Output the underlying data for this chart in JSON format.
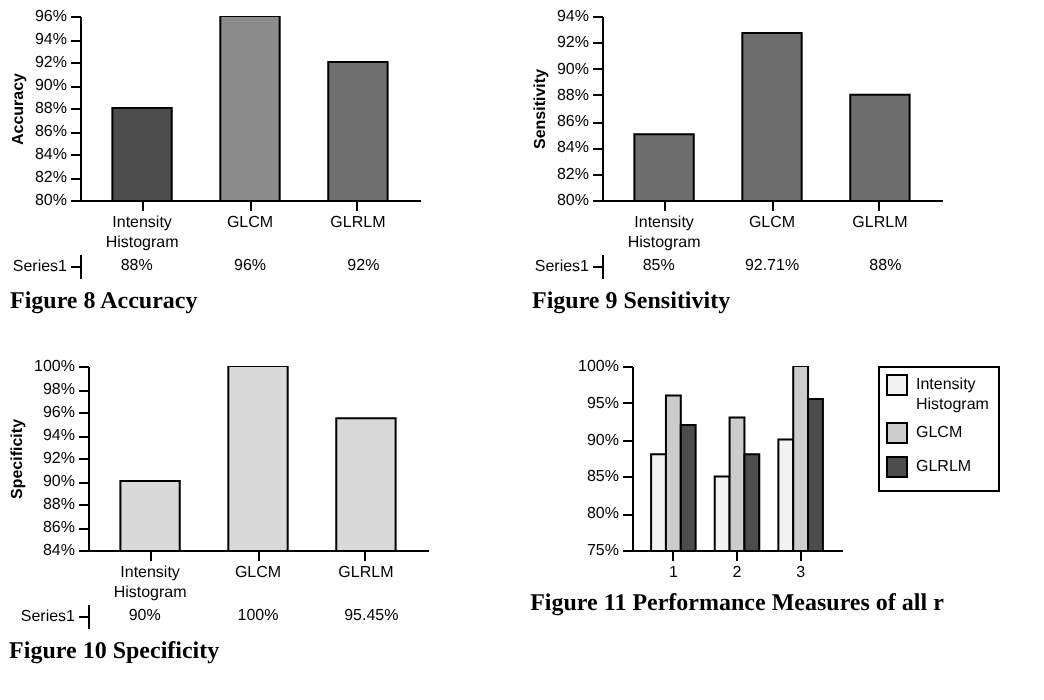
{
  "chart_data": [
    {
      "type": "bar",
      "title": "Figure 8 Accuracy",
      "ylabel": "Accuracy",
      "categories": [
        "Intensity Histogram",
        "GLCM",
        "GLRLM"
      ],
      "series": [
        {
          "name": "Series1",
          "colors": [
            "#4d4d4d",
            "#8c8c8c",
            "#707070"
          ],
          "values": [
            88,
            96,
            92
          ],
          "value_labels": [
            "88%",
            "96%",
            "92%"
          ]
        }
      ],
      "ylim": [
        80,
        96
      ],
      "yticks": [
        {
          "value": 80,
          "label": "80%"
        },
        {
          "value": 82,
          "label": "82%"
        },
        {
          "value": 84,
          "label": "84%"
        },
        {
          "value": 86,
          "label": "86%"
        },
        {
          "value": 88,
          "label": "88%"
        },
        {
          "value": 90,
          "label": "90%"
        },
        {
          "value": 92,
          "label": "92%"
        },
        {
          "value": 94,
          "label": "94%"
        },
        {
          "value": 96,
          "label": "96%"
        }
      ]
    },
    {
      "type": "bar",
      "title": "Figure 9 Sensitivity",
      "ylabel": "Sensitivity",
      "categories": [
        "Intensity Histogram",
        "GLCM",
        "GLRLM"
      ],
      "series": [
        {
          "name": "Series1",
          "color": "#6e6e6e",
          "values": [
            85,
            92.71,
            88
          ],
          "value_labels": [
            "85%",
            "92.71%",
            "88%"
          ]
        }
      ],
      "ylim": [
        80,
        94
      ],
      "yticks": [
        {
          "value": 80,
          "label": "80%"
        },
        {
          "value": 82,
          "label": "82%"
        },
        {
          "value": 84,
          "label": "84%"
        },
        {
          "value": 86,
          "label": "86%"
        },
        {
          "value": 88,
          "label": "88%"
        },
        {
          "value": 90,
          "label": "90%"
        },
        {
          "value": 92,
          "label": "92%"
        },
        {
          "value": 94,
          "label": "94%"
        }
      ]
    },
    {
      "type": "bar",
      "title": "Figure 10 Specificity",
      "ylabel": "Specificity",
      "categories": [
        "Intensity Histogram",
        "GLCM",
        "GLRLM"
      ],
      "series": [
        {
          "name": "Series1",
          "color": "#d9d9d9",
          "values": [
            90,
            100,
            95.45
          ],
          "value_labels": [
            "90%",
            "100%",
            "95.45%"
          ]
        }
      ],
      "ylim": [
        84,
        100
      ],
      "yticks": [
        {
          "value": 84,
          "label": "84%"
        },
        {
          "value": 86,
          "label": "86%"
        },
        {
          "value": 88,
          "label": "88%"
        },
        {
          "value": 90,
          "label": "90%"
        },
        {
          "value": 92,
          "label": "92%"
        },
        {
          "value": 94,
          "label": "94%"
        },
        {
          "value": 96,
          "label": "96%"
        },
        {
          "value": 98,
          "label": "98%"
        },
        {
          "value": 100,
          "label": "100%"
        }
      ]
    },
    {
      "type": "bar",
      "title": "Figure 11 Performance Measures of all r",
      "categories": [
        "1",
        "2",
        "3"
      ],
      "legend": "right",
      "series": [
        {
          "name": "Intensity Histogram",
          "color": "#f2f2f2",
          "values": [
            88,
            85,
            90
          ]
        },
        {
          "name": "GLCM",
          "color": "#cccccc",
          "values": [
            96,
            93,
            100
          ]
        },
        {
          "name": "GLRLM",
          "color": "#4d4d4d",
          "values": [
            92,
            88,
            95.5
          ]
        }
      ],
      "ylim": [
        75,
        100
      ],
      "yticks": [
        {
          "value": 75,
          "label": "75%"
        },
        {
          "value": 80,
          "label": "80%"
        },
        {
          "value": 85,
          "label": "85%"
        },
        {
          "value": 90,
          "label": "90%"
        },
        {
          "value": 95,
          "label": "95%"
        },
        {
          "value": 100,
          "label": "100%"
        }
      ]
    }
  ]
}
